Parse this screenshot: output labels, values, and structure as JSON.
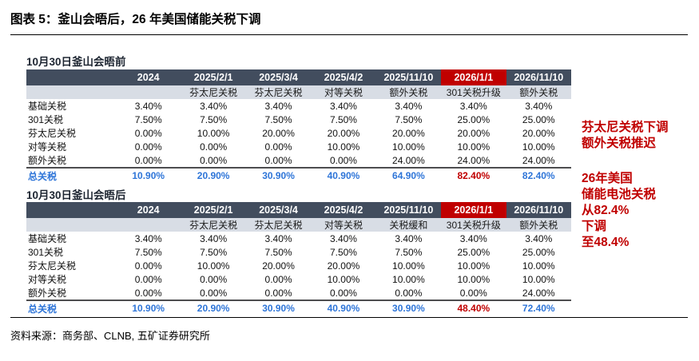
{
  "title": "图表 5：釜山会晤后，26 年美国储能关税下调",
  "source": "资料来源：商务部、CLNB, 五矿证券研究所",
  "annotations": {
    "note1": "芬太尼关税下调\n额外关税推迟",
    "note2": "26年美国\n储能电池关税\n从82.4%\n下调\n至48.4%"
  },
  "colors": {
    "header_bg": "#424d5e",
    "highlight_bg": "#c00000",
    "subheader_bg": "#d8dde5",
    "total_blue": "#2e75d8",
    "annotation_red": "#c00000"
  },
  "tables": [
    {
      "caption": "10月30日釜山会晤前",
      "columns": [
        "2024",
        "2025/2/1",
        "2025/3/4",
        "2025/4/2",
        "2025/11/10",
        "2026/1/1",
        "2026/11/10"
      ],
      "subheaders": [
        "",
        "芬太尼关税",
        "芬太尼关税",
        "对等关税",
        "额外关税",
        "301关税升级",
        "额外关税"
      ],
      "highlight_col": 5,
      "rows": [
        {
          "label": "基础关税",
          "values": [
            "3.40%",
            "3.40%",
            "3.40%",
            "3.40%",
            "3.40%",
            "3.40%",
            "3.40%"
          ]
        },
        {
          "label": "301关税",
          "values": [
            "7.50%",
            "7.50%",
            "7.50%",
            "7.50%",
            "7.50%",
            "25.00%",
            "25.00%"
          ]
        },
        {
          "label": "芬太尼关税",
          "values": [
            "0.00%",
            "10.00%",
            "20.00%",
            "20.00%",
            "20.00%",
            "20.00%",
            "20.00%"
          ]
        },
        {
          "label": "对等关税",
          "values": [
            "0.00%",
            "0.00%",
            "0.00%",
            "10.00%",
            "10.00%",
            "10.00%",
            "10.00%"
          ]
        },
        {
          "label": "额外关税",
          "values": [
            "0.00%",
            "0.00%",
            "0.00%",
            "0.00%",
            "24.00%",
            "24.00%",
            "24.00%"
          ]
        }
      ],
      "total": {
        "label": "总关税",
        "values": [
          "10.90%",
          "20.90%",
          "30.90%",
          "40.90%",
          "64.90%",
          "82.40%",
          "82.40%"
        ],
        "red_index": 5
      }
    },
    {
      "caption": "10月30日釜山会晤后",
      "columns": [
        "2024",
        "2025/2/1",
        "2025/3/4",
        "2025/4/2",
        "2025/11/10",
        "2026/1/1",
        "2026/11/10"
      ],
      "subheaders": [
        "",
        "芬太尼关税",
        "芬太尼关税",
        "对等关税",
        "关税缓和",
        "301关税升级",
        "额外关税"
      ],
      "highlight_col": 5,
      "rows": [
        {
          "label": "基础关税",
          "values": [
            "3.40%",
            "3.40%",
            "3.40%",
            "3.40%",
            "3.40%",
            "3.40%",
            "3.40%"
          ]
        },
        {
          "label": "301关税",
          "values": [
            "7.50%",
            "7.50%",
            "7.50%",
            "7.50%",
            "7.50%",
            "25.00%",
            "25.00%"
          ]
        },
        {
          "label": "芬太尼关税",
          "values": [
            "0.00%",
            "10.00%",
            "20.00%",
            "20.00%",
            "10.00%",
            "10.00%",
            "10.00%"
          ]
        },
        {
          "label": "对等关税",
          "values": [
            "0.00%",
            "0.00%",
            "0.00%",
            "10.00%",
            "10.00%",
            "10.00%",
            "10.00%"
          ]
        },
        {
          "label": "额外关税",
          "values": [
            "0.00%",
            "0.00%",
            "0.00%",
            "0.00%",
            "0.00%",
            "0.00%",
            "24.00%"
          ]
        }
      ],
      "total": {
        "label": "总关税",
        "values": [
          "10.90%",
          "20.90%",
          "30.90%",
          "40.90%",
          "30.90%",
          "48.40%",
          "72.40%"
        ],
        "red_index": 5
      }
    }
  ]
}
